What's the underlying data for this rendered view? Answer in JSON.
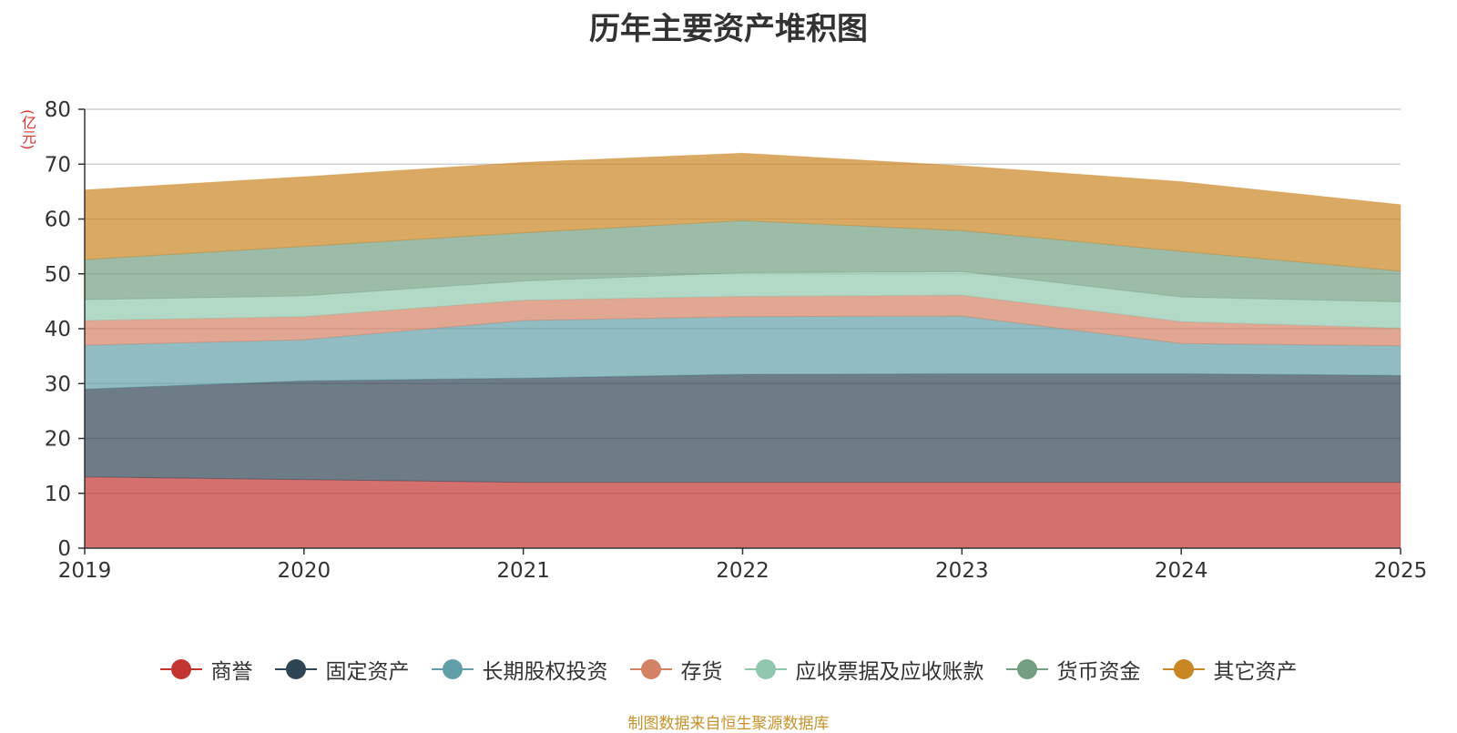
{
  "chart_data": {
    "type": "area",
    "stacked": true,
    "title": "历年主要资产堆积图",
    "ylabel": "(亿元)",
    "xlabel": "",
    "x": [
      "2019",
      "2020",
      "2021",
      "2022",
      "2023",
      "2024",
      "2025"
    ],
    "ylim": [
      0,
      80
    ],
    "yticks": [
      "0",
      "10",
      "20",
      "30",
      "40",
      "50",
      "60",
      "70",
      "80"
    ],
    "grid": true,
    "legend_position": "bottom",
    "series": [
      {
        "name": "商誉",
        "color": "#c23531",
        "values": [
          13.0,
          12.5,
          12.0,
          12.0,
          12.0,
          12.0,
          12.0
        ]
      },
      {
        "name": "固定资产",
        "color": "#2f4554",
        "values": [
          16.0,
          18.0,
          19.0,
          19.7,
          19.8,
          19.8,
          19.5
        ]
      },
      {
        "name": "长期股权投资",
        "color": "#61a0a8",
        "values": [
          8.0,
          7.5,
          10.5,
          10.5,
          10.5,
          5.5,
          5.4
        ]
      },
      {
        "name": "存货",
        "color": "#d48265",
        "values": [
          4.5,
          4.2,
          3.7,
          3.7,
          3.8,
          4.0,
          3.2
        ]
      },
      {
        "name": "应收票据及应收账款",
        "color": "#91c7ae",
        "values": [
          3.8,
          3.8,
          3.5,
          4.3,
          4.3,
          4.5,
          4.8
        ]
      },
      {
        "name": "货币资金",
        "color": "#749f83",
        "values": [
          7.3,
          9.0,
          8.8,
          9.5,
          7.5,
          8.3,
          5.6
        ]
      },
      {
        "name": "其它资产",
        "color": "#ca8622",
        "values": [
          12.7,
          12.7,
          12.8,
          12.3,
          11.8,
          12.7,
          12.1
        ]
      }
    ]
  },
  "footer": {
    "source": "制图数据来自恒生聚源数据库"
  }
}
